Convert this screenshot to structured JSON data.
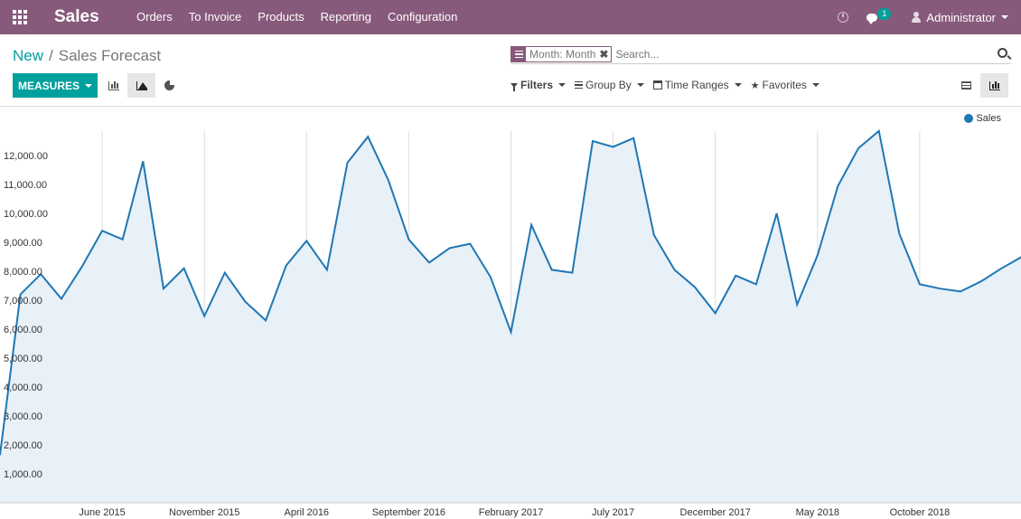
{
  "app": {
    "title": "Sales"
  },
  "menu": [
    {
      "name": "menu-orders",
      "label": "Orders"
    },
    {
      "name": "menu-to-invoice",
      "label": "To Invoice"
    },
    {
      "name": "menu-products",
      "label": "Products"
    },
    {
      "name": "menu-reporting",
      "label": "Reporting"
    },
    {
      "name": "menu-configuration",
      "label": "Configuration"
    }
  ],
  "systray": {
    "messages_count": "1",
    "user": "Administrator"
  },
  "breadcrumb": {
    "parent": "New",
    "separator": "/",
    "current": "Sales Forecast"
  },
  "search": {
    "facet": "Month: Month",
    "placeholder": "Search..."
  },
  "toolbar": {
    "measures_label": "MEASURES"
  },
  "filters": {
    "filters": "Filters",
    "group_by": "Group By",
    "time_ranges": "Time Ranges",
    "favorites": "Favorites"
  },
  "colors": {
    "brand": "#875a7b",
    "accent": "#00a09d",
    "series": "#1f77b4",
    "fill": "#e8f0f8"
  },
  "chart_data": {
    "type": "area",
    "ylim": [
      0,
      13000
    ],
    "yticks": [
      1000,
      2000,
      3000,
      4000,
      5000,
      6000,
      7000,
      8000,
      9000,
      10000,
      11000,
      12000
    ],
    "ytick_labels": [
      "1,000.00",
      "2,000.00",
      "3,000.00",
      "4,000.00",
      "5,000.00",
      "6,000.00",
      "7,000.00",
      "8,000.00",
      "9,000.00",
      "10,000.00",
      "11,000.00",
      "12,000.00"
    ],
    "xticks": [
      {
        "index": 5,
        "label": "June 2015"
      },
      {
        "index": 10,
        "label": "November 2015"
      },
      {
        "index": 15,
        "label": "April 2016"
      },
      {
        "index": 20,
        "label": "September 2016"
      },
      {
        "index": 25,
        "label": "February 2017"
      },
      {
        "index": 30,
        "label": "July 2017"
      },
      {
        "index": 35,
        "label": "December 2017"
      },
      {
        "index": 40,
        "label": "May 2018"
      },
      {
        "index": 45,
        "label": "October 2018"
      }
    ],
    "legend": {
      "position": "top-right"
    },
    "grid": "vertical",
    "series": [
      {
        "name": "Sales",
        "values": [
          1650,
          7200,
          7900,
          7050,
          8150,
          9400,
          9100,
          11800,
          7400,
          8100,
          6450,
          7950,
          6950,
          6300,
          8200,
          9050,
          8050,
          11750,
          12650,
          11150,
          9100,
          8300,
          8800,
          8950,
          7800,
          5900,
          9600,
          8050,
          7950,
          12500,
          12300,
          12600,
          9250,
          8050,
          7450,
          6550,
          7850,
          7550,
          10000,
          6850,
          8550,
          10950,
          12250,
          12850,
          9300,
          7550,
          7400,
          7300,
          7650,
          8100,
          8500
        ]
      }
    ]
  }
}
